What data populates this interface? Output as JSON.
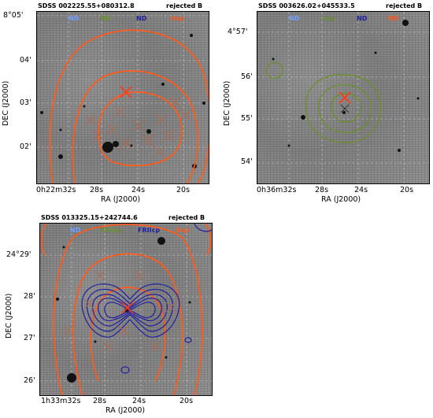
{
  "panels": [
    {
      "name": "SDSS 002225.55+080312.8",
      "status": "rejected B",
      "legend": [
        {
          "label": "ND",
          "color": "#6fa0ff"
        },
        {
          "label": "ND",
          "color": "#6b8f2f"
        },
        {
          "label": "ND",
          "color": "#1f1fa0"
        },
        {
          "label": "Ucp",
          "color": "#ff5a1a"
        }
      ],
      "y_ticks": [
        "8°05'",
        "04'",
        "03'",
        "02'"
      ],
      "x_ticks": [
        "0h22m32s",
        "28s",
        "24s",
        "20s"
      ],
      "xlabel": "RA (J2000)",
      "ylabel": "DEC (J2000)"
    },
    {
      "name": "SDSS 003626.02+045533.5",
      "status": "rejected B",
      "legend": [
        {
          "label": "ND",
          "color": "#6fa0ff"
        },
        {
          "label": "Ucp",
          "color": "#6b8f2f"
        },
        {
          "label": "ND",
          "color": "#1f1fa0"
        },
        {
          "label": "ND",
          "color": "#ff5a1a"
        }
      ],
      "y_ticks": [
        "4°57'",
        "56'",
        "55'",
        "54'"
      ],
      "x_ticks": [
        "0h36m32s",
        "28s",
        "24s",
        "20s"
      ],
      "xlabel": "RA (J2000)",
      "ylabel": "DEC (J2000)"
    },
    {
      "name": "SDSS 013325.15+242744.6",
      "status": "rejected B",
      "legend": [
        {
          "label": "ND",
          "color": "#6fa0ff"
        },
        {
          "label": "FRIIcp",
          "color": "#6b8f2f"
        },
        {
          "label": "FRIIcp",
          "color": "#1f1fa0"
        },
        {
          "label": "Ucp",
          "color": "#ff5a1a"
        }
      ],
      "y_ticks": [
        "24°29'",
        "28'",
        "27'",
        "26'"
      ],
      "x_ticks": [
        "1h33m32s",
        "28s",
        "24s",
        "20s"
      ],
      "xlabel": "RA (J2000)",
      "ylabel": "DEC (J2000)"
    }
  ]
}
